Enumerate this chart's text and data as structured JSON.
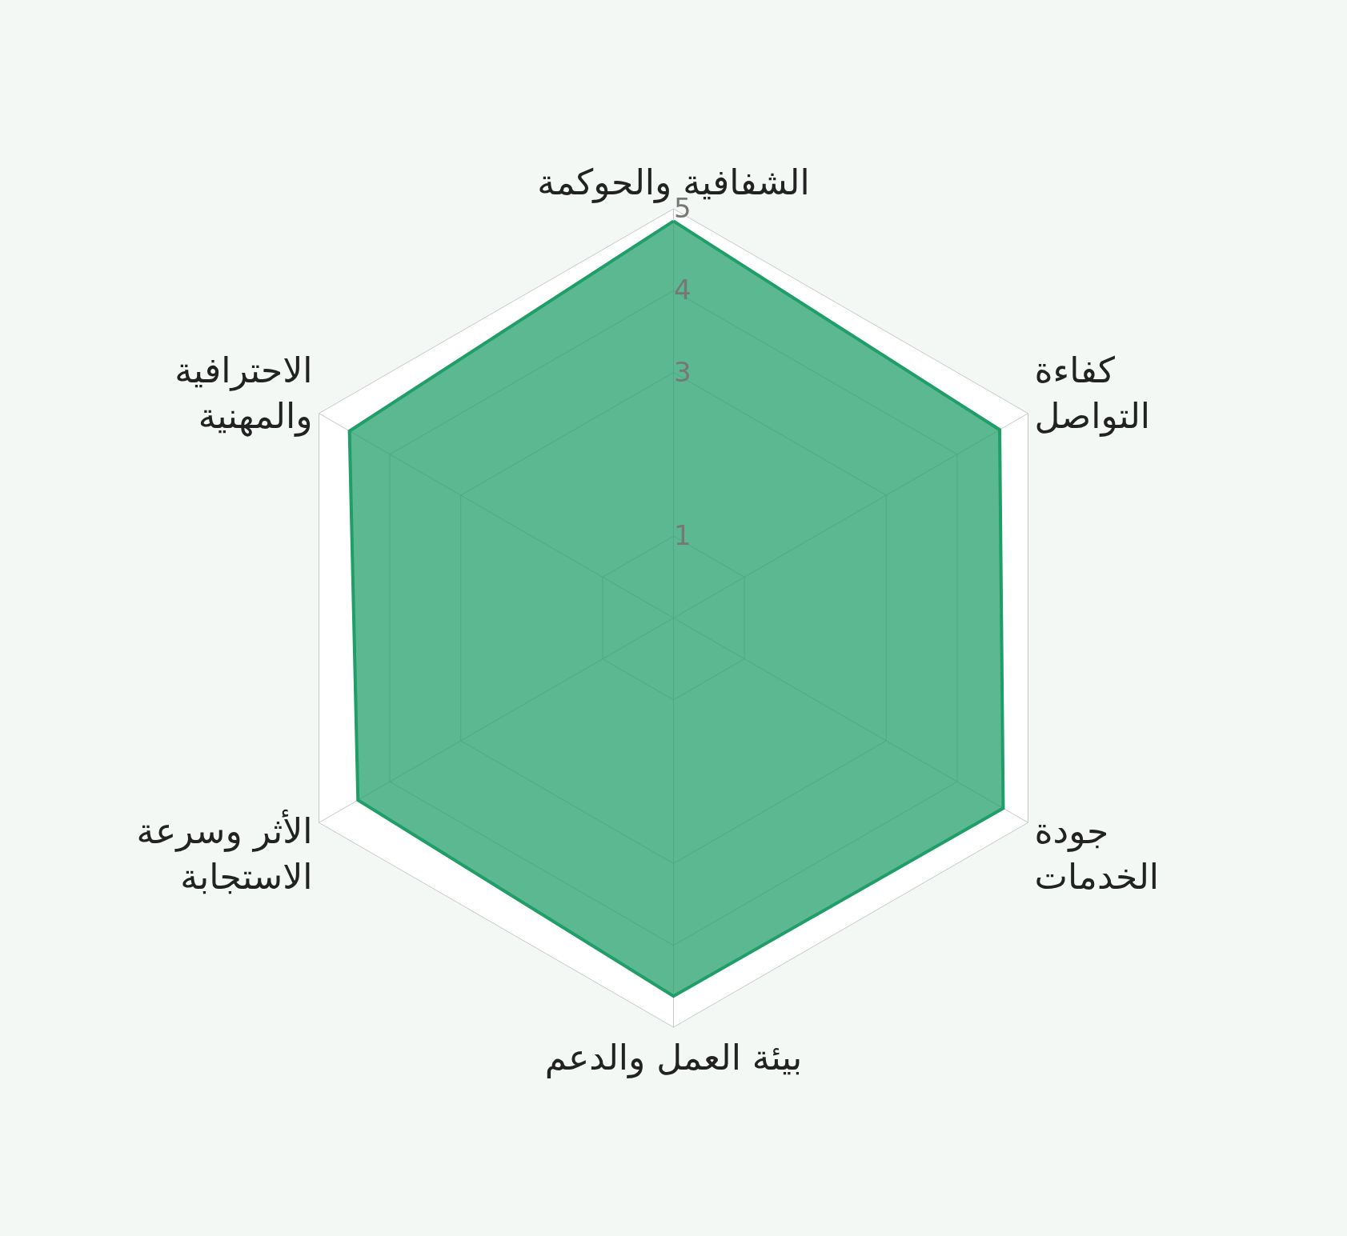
{
  "chart_data": {
    "type": "radar",
    "categories": [
      "الشفافية والحوكمة",
      "كفاءة\nالتواصل",
      "جودة\nالخدمات",
      "بيئة العمل والدعم",
      "الأثر وسرعة\nالاستجابة",
      "الاحترافية\nوالمهنية"
    ],
    "series": [
      {
        "color": "#1f9e68",
        "values": [
          4.85,
          4.6,
          4.65,
          4.62,
          4.45,
          4.57
        ]
      }
    ],
    "ylim": [
      0,
      5
    ],
    "yticks": [
      1,
      3,
      4,
      5
    ],
    "grid": true,
    "marker": "none",
    "line_style": "solid"
  }
}
